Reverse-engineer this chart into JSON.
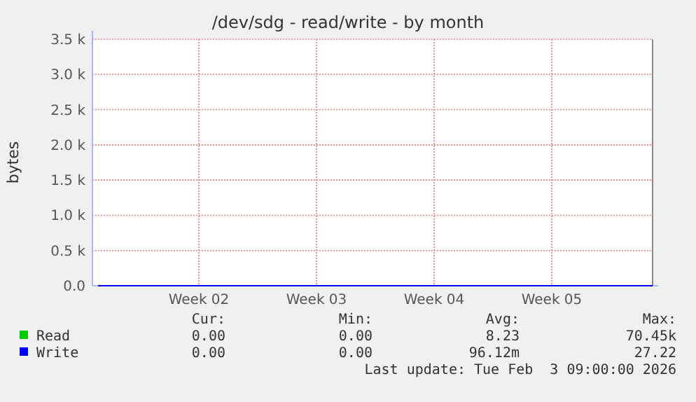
{
  "chart_data": {
    "type": "line",
    "title": "/dev/sdg - read/write - by month",
    "ylabel": "bytes",
    "categories": [
      null,
      null,
      null,
      null,
      null,
      null,
      "Week 02",
      null,
      null,
      null,
      null,
      null,
      null,
      "Week 03",
      null,
      null,
      null,
      null,
      null,
      null,
      "Week 04",
      null,
      null,
      null,
      null,
      null,
      null,
      "Week 05",
      null,
      null,
      null,
      null,
      null,
      null
    ],
    "ylim": [
      0,
      3500
    ],
    "yticks": [
      {
        "value": 0,
        "label": "0.0"
      },
      {
        "value": 500,
        "label": "0.5 k"
      },
      {
        "value": 1000,
        "label": "1.0 k"
      },
      {
        "value": 1500,
        "label": "1.5 k"
      },
      {
        "value": 2000,
        "label": "2.0 k"
      },
      {
        "value": 2500,
        "label": "2.5 k"
      },
      {
        "value": 3000,
        "label": "3.0 k"
      },
      {
        "value": 3500,
        "label": "3.5 k"
      }
    ],
    "series": [
      {
        "name": "Read",
        "color": "#00cc00",
        "values": [
          null,
          null,
          null,
          null,
          null,
          null,
          null,
          null,
          null,
          null,
          null,
          null,
          null,
          null,
          null,
          null,
          null,
          null,
          null,
          null,
          null,
          null,
          null,
          null,
          null,
          null,
          null,
          null,
          null,
          null,
          null,
          null,
          null,
          null
        ]
      },
      {
        "name": "Write",
        "color": "#0000ff",
        "values": [
          0,
          0,
          0,
          0,
          0,
          0,
          0,
          0,
          0,
          0,
          0,
          0,
          0,
          0,
          0,
          0,
          0,
          0,
          0,
          0,
          0,
          0,
          0,
          0,
          0,
          0,
          0,
          0,
          0,
          0,
          0,
          0,
          0,
          0
        ]
      }
    ],
    "grid": true,
    "legend": "bottom",
    "marker": "none",
    "line_style": "solid",
    "annotations": [
      "Cur:",
      "Min:",
      "Avg:",
      "Max:",
      "0.00",
      "0.00",
      "8.23",
      "70.45k",
      "0.00",
      "0.00",
      "96.12m",
      "27.22",
      "Last update: Tue Feb  3 09:00:00 2026"
    ]
  }
}
